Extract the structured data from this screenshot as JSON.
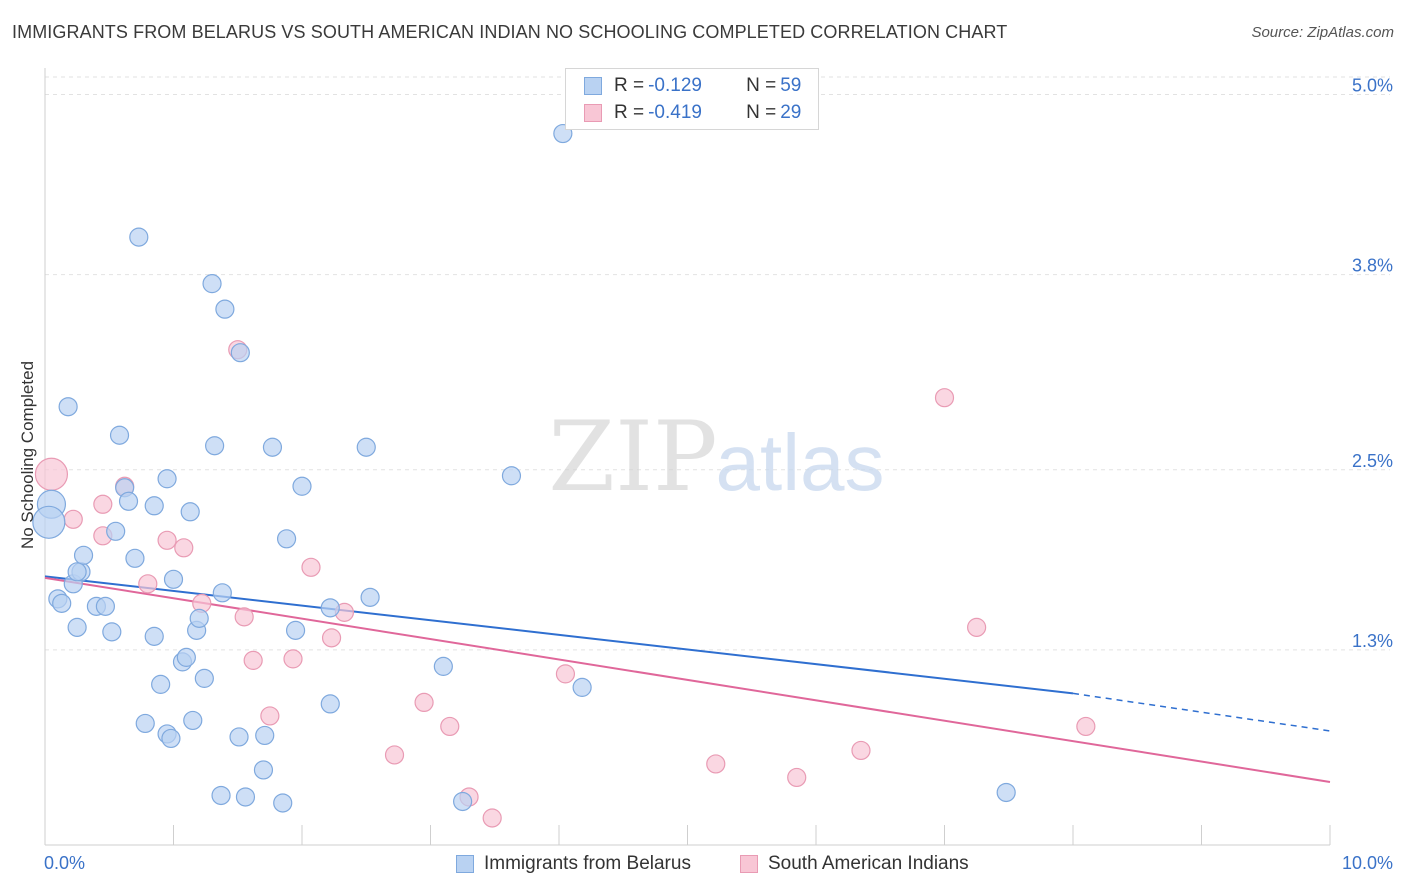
{
  "title": "IMMIGRANTS FROM BELARUS VS SOUTH AMERICAN INDIAN NO SCHOOLING COMPLETED CORRELATION CHART",
  "source": "Source: ZipAtlas.com",
  "watermark": {
    "zip": "ZIP",
    "atlas": "atlas"
  },
  "colors": {
    "blue_fill": "#b9d2f2",
    "blue_stroke": "#7fa9de",
    "blue_line": "#2f6fd0",
    "pink_fill": "#f8c6d5",
    "pink_stroke": "#e99bb4",
    "pink_line": "#e0679a",
    "tick_label": "#3a72c8",
    "grid": "#e2e2e2"
  },
  "legend": {
    "rows": [
      {
        "r_label": "R = ",
        "r_value": "-0.129",
        "n_label": "N = ",
        "n_value": "59"
      },
      {
        "r_label": "R = ",
        "r_value": "-0.419",
        "n_label": "N = ",
        "n_value": "29"
      }
    ]
  },
  "bottom_legend": {
    "blue": "Immigrants from Belarus",
    "pink": "South American Indians"
  },
  "chart_data": {
    "type": "scatter",
    "title": "IMMIGRANTS FROM BELARUS VS SOUTH AMERICAN INDIAN NO SCHOOLING COMPLETED CORRELATION CHART",
    "xlabel": "",
    "ylabel": "No Schooling Completed",
    "xlim": [
      0,
      10
    ],
    "ylim": [
      0,
      5.15
    ],
    "x_tick_labels": [
      "0.0%",
      "10.0%"
    ],
    "y_ticks": [
      1.3,
      2.5,
      3.8,
      5.0
    ],
    "y_tick_labels": [
      "1.3%",
      "2.5%",
      "3.8%",
      "5.0%"
    ],
    "grid": "horizontal dashed",
    "legend_position": "top-center",
    "series": [
      {
        "name": "Immigrants from Belarus",
        "color": "#b9d2f2",
        "points": [
          [
            0.05,
            2.27,
            14
          ],
          [
            0.03,
            2.15,
            16
          ],
          [
            0.18,
            2.92,
            9
          ],
          [
            0.1,
            1.64,
            9
          ],
          [
            0.13,
            1.61,
            9
          ],
          [
            0.22,
            1.74,
            9
          ],
          [
            0.28,
            1.82,
            9
          ],
          [
            0.3,
            1.93,
            9
          ],
          [
            0.25,
            1.82,
            9
          ],
          [
            0.25,
            1.45,
            9
          ],
          [
            0.4,
            1.59,
            9
          ],
          [
            0.47,
            1.59,
            9
          ],
          [
            0.52,
            1.42,
            9
          ],
          [
            0.55,
            2.09,
            9
          ],
          [
            0.58,
            2.73,
            9
          ],
          [
            0.62,
            2.38,
            9
          ],
          [
            0.65,
            2.29,
            9
          ],
          [
            0.7,
            1.91,
            9
          ],
          [
            0.73,
            4.05,
            9
          ],
          [
            0.85,
            2.26,
            9
          ],
          [
            0.85,
            1.39,
            9
          ],
          [
            0.9,
            1.07,
            9
          ],
          [
            0.95,
            2.44,
            9
          ],
          [
            1.0,
            1.77,
            9
          ],
          [
            1.07,
            1.22,
            9
          ],
          [
            1.1,
            1.25,
            9
          ],
          [
            1.13,
            2.22,
            9
          ],
          [
            1.18,
            1.43,
            9
          ],
          [
            1.2,
            1.51,
            9
          ],
          [
            1.3,
            3.74,
            9
          ],
          [
            1.32,
            2.66,
            9
          ],
          [
            1.38,
            1.68,
            9
          ],
          [
            1.4,
            3.57,
            9
          ],
          [
            1.52,
            3.28,
            9
          ],
          [
            1.77,
            2.65,
            9
          ],
          [
            1.88,
            2.04,
            9
          ],
          [
            1.95,
            1.43,
            9
          ],
          [
            2.0,
            2.39,
            9
          ],
          [
            2.22,
            1.58,
            9
          ],
          [
            2.5,
            2.65,
            9
          ],
          [
            2.53,
            1.65,
            9
          ],
          [
            3.1,
            1.19,
            9
          ],
          [
            3.25,
            0.29,
            9
          ],
          [
            3.63,
            2.46,
            9
          ],
          [
            4.03,
            4.74,
            9
          ],
          [
            4.18,
            1.05,
            9
          ],
          [
            0.78,
            0.81,
            9
          ],
          [
            0.95,
            0.74,
            9
          ],
          [
            0.98,
            0.71,
            9
          ],
          [
            1.15,
            0.83,
            9
          ],
          [
            1.24,
            1.11,
            9
          ],
          [
            1.37,
            0.33,
            9
          ],
          [
            1.51,
            0.72,
            9
          ],
          [
            1.56,
            0.32,
            9
          ],
          [
            1.7,
            0.5,
            9
          ],
          [
            1.71,
            0.73,
            9
          ],
          [
            1.85,
            0.28,
            9
          ],
          [
            2.22,
            0.94,
            9
          ],
          [
            7.48,
            0.35,
            9
          ]
        ]
      },
      {
        "name": "South American Indians",
        "color": "#f8c6d5",
        "points": [
          [
            0.05,
            2.47,
            16
          ],
          [
            0.22,
            2.17,
            9
          ],
          [
            0.45,
            2.27,
            9
          ],
          [
            0.45,
            2.06,
            9
          ],
          [
            0.62,
            2.39,
            9
          ],
          [
            0.8,
            1.74,
            9
          ],
          [
            0.95,
            2.03,
            9
          ],
          [
            1.08,
            1.98,
            9
          ],
          [
            1.22,
            1.61,
            9
          ],
          [
            1.5,
            3.3,
            9
          ],
          [
            1.55,
            1.52,
            9
          ],
          [
            1.62,
            1.23,
            9
          ],
          [
            1.75,
            0.86,
            9
          ],
          [
            1.93,
            1.24,
            9
          ],
          [
            2.07,
            1.85,
            9
          ],
          [
            2.23,
            1.38,
            9
          ],
          [
            2.33,
            1.55,
            9
          ],
          [
            2.72,
            0.6,
            9
          ],
          [
            2.95,
            0.95,
            9
          ],
          [
            3.15,
            0.79,
            9
          ],
          [
            3.3,
            0.32,
            9
          ],
          [
            3.48,
            0.18,
            9
          ],
          [
            4.05,
            1.14,
            9
          ],
          [
            5.22,
            0.54,
            9
          ],
          [
            5.85,
            0.45,
            9
          ],
          [
            6.35,
            0.63,
            9
          ],
          [
            7.0,
            2.98,
            9
          ],
          [
            7.25,
            1.45,
            9
          ],
          [
            8.1,
            0.79,
            9
          ]
        ]
      }
    ],
    "trend_lines": [
      {
        "series": "Immigrants from Belarus",
        "x": [
          0.0,
          8.0
        ],
        "y": [
          1.79,
          1.01
        ],
        "dashed_extension": [
          8.0,
          10.0
        ],
        "dashed_y": [
          1.01,
          0.76
        ]
      },
      {
        "series": "South American Indians",
        "x": [
          0.0,
          10.0
        ],
        "y": [
          1.78,
          0.42
        ]
      }
    ]
  }
}
